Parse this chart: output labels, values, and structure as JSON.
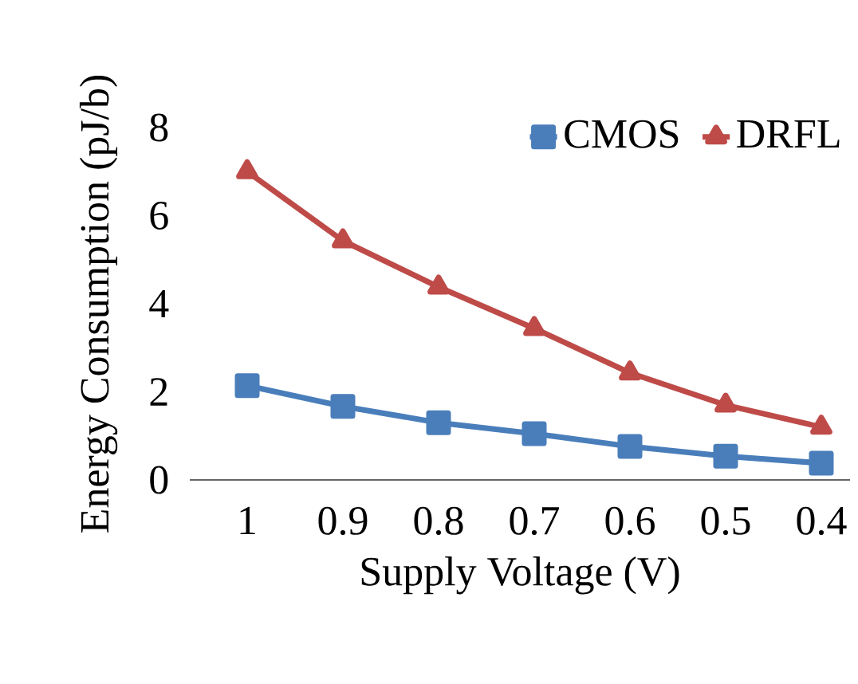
{
  "chart_data": {
    "type": "line",
    "xlabel": "Supply Voltage (V)",
    "ylabel": "Energy Consumption (pJ/b)",
    "categories": [
      "1",
      "0.9",
      "0.8",
      "0.7",
      "0.6",
      "0.5",
      "0.4"
    ],
    "series": [
      {
        "name": "CMOS",
        "color": "#4a7ebb",
        "marker": "square",
        "values": [
          2.14,
          1.67,
          1.3,
          1.05,
          0.76,
          0.54,
          0.38
        ]
      },
      {
        "name": "DRFL",
        "color": "#be4b48",
        "marker": "triangle",
        "values": [
          7.0,
          5.43,
          4.38,
          3.44,
          2.43,
          1.7,
          1.2
        ]
      }
    ],
    "ylim": [
      0,
      8
    ],
    "yticks": [
      0,
      2,
      4,
      6,
      8
    ],
    "legend": "top right"
  }
}
